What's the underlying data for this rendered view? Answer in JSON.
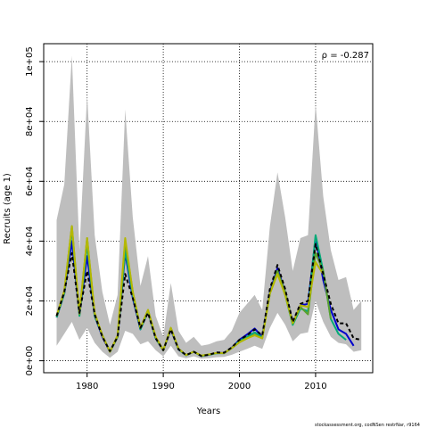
{
  "chart_data": {
    "type": "line",
    "xlabel": "Years",
    "ylabel": "Recruits (age 1)",
    "annotation": "ρ = -0.287",
    "xlim": [
      1974.3,
      2017.5
    ],
    "ylim": [
      -4000,
      106000
    ],
    "x_ticks": [
      1980,
      1990,
      2000,
      2010
    ],
    "x_tick_labels": [
      "1980",
      "1990",
      "2000",
      "2010"
    ],
    "y_ticks": [
      0,
      20000,
      40000,
      60000,
      80000,
      100000
    ],
    "y_tick_labels": [
      "0e+00",
      "2e+04",
      "4e+04",
      "6e+04",
      "8e+04",
      "1e+05"
    ],
    "grid": true,
    "band": {
      "x": [
        1976,
        1977,
        1978,
        1979,
        1980,
        1981,
        1982,
        1983,
        1984,
        1985,
        1986,
        1987,
        1988,
        1989,
        1990,
        1991,
        1992,
        1993,
        1994,
        1995,
        1996,
        1997,
        1998,
        1999,
        2000,
        2001,
        2002,
        2003,
        2004,
        2005,
        2006,
        2007,
        2008,
        2009,
        2010,
        2011,
        2012,
        2013,
        2014,
        2015,
        2016
      ],
      "upper": [
        47000,
        59000,
        102000,
        37000,
        89000,
        42000,
        23000,
        12000,
        22000,
        84000,
        48000,
        25000,
        35000,
        15000,
        8000,
        26000,
        10000,
        6000,
        8000,
        5000,
        5500,
        6500,
        7000,
        10000,
        16000,
        19000,
        22000,
        17000,
        45000,
        63000,
        48000,
        30000,
        41000,
        42000,
        86000,
        55000,
        37000,
        27000,
        28000,
        17000,
        20000
      ],
      "lower": [
        5000,
        9000,
        13000,
        7000,
        11000,
        6000,
        3000,
        1000,
        3000,
        10000,
        9000,
        5500,
        6500,
        3500,
        1500,
        5000,
        1500,
        800,
        1500,
        700,
        900,
        1200,
        1300,
        2000,
        3000,
        4000,
        5000,
        4000,
        11000,
        16000,
        12000,
        6500,
        9000,
        9500,
        20000,
        13000,
        8000,
        6000,
        5500,
        3000,
        3500
      ]
    },
    "series": [
      {
        "color": "#000000",
        "dash": "4,3",
        "x": [
          1976,
          1977,
          1978,
          1979,
          1980,
          1981,
          1982,
          1983,
          1984,
          1985,
          1986,
          1987,
          1988,
          1989,
          1990,
          1991,
          1992,
          1993,
          1994,
          1995,
          1996,
          1997,
          1998,
          1999,
          2000,
          2001,
          2002,
          2003,
          2004,
          2005,
          2006,
          2007,
          2008,
          2009,
          2010,
          2011,
          2012,
          2013,
          2014,
          2015,
          2016
        ],
        "values": [
          15000,
          23000,
          36000,
          16000,
          30000,
          15500,
          8000,
          3200,
          8000,
          29000,
          21000,
          11000,
          16000,
          7500,
          3500,
          10500,
          3800,
          1900,
          3000,
          1600,
          2000,
          2800,
          2700,
          4500,
          7000,
          8500,
          10500,
          8500,
          24000,
          32000,
          24000,
          13000,
          19000,
          20000,
          39000,
          29000,
          19000,
          12500,
          12500,
          7500,
          7000
        ]
      },
      {
        "color": "#0000cd",
        "dash": "",
        "x": [
          1976,
          1977,
          1978,
          1979,
          1980,
          1981,
          1982,
          1983,
          1984,
          1985,
          1986,
          1987,
          1988,
          1989,
          1990,
          1991,
          1992,
          1993,
          1994,
          1995,
          1996,
          1997,
          1998,
          1999,
          2000,
          2001,
          2002,
          2003,
          2004,
          2005,
          2006,
          2007,
          2008,
          2009,
          2010,
          2011,
          2012,
          2013,
          2014,
          2015
        ],
        "values": [
          14500,
          22500,
          40000,
          15500,
          35000,
          15000,
          8000,
          3000,
          8000,
          36000,
          21000,
          10500,
          16500,
          7500,
          3500,
          10500,
          3800,
          1800,
          3000,
          1600,
          2000,
          2600,
          2600,
          4400,
          7000,
          8800,
          10800,
          8000,
          23000,
          31000,
          23000,
          12500,
          18500,
          19000,
          41000,
          27000,
          17000,
          10500,
          9000,
          5000
        ]
      },
      {
        "color": "#00aa77",
        "dash": "",
        "x": [
          1976,
          1977,
          1978,
          1979,
          1980,
          1981,
          1982,
          1983,
          1984,
          1985,
          1986,
          1987,
          1988,
          1989,
          1990,
          1991,
          1992,
          1993,
          1994,
          1995,
          1996,
          1997,
          1998,
          1999,
          2000,
          2001,
          2002,
          2003,
          2004,
          2005,
          2006,
          2007,
          2008,
          2009,
          2010,
          2011,
          2012,
          2013,
          2014
        ],
        "values": [
          14500,
          22500,
          44000,
          15000,
          39000,
          15000,
          8500,
          3000,
          8000,
          37000,
          22000,
          10500,
          16500,
          7500,
          3500,
          10800,
          3800,
          1800,
          3000,
          1600,
          2000,
          2500,
          2600,
          4300,
          6600,
          8000,
          9500,
          7800,
          22500,
          30000,
          22000,
          12000,
          17500,
          16500,
          42000,
          30000,
          14000,
          9000,
          7000
        ]
      },
      {
        "color": "#5aa02c",
        "dash": "",
        "x": [
          1976,
          1977,
          1978,
          1979,
          1980,
          1981,
          1982,
          1983,
          1984,
          1985,
          1986,
          1987,
          1988,
          1989,
          1990,
          1991,
          1992,
          1993,
          1994,
          1995,
          1996,
          1997,
          1998,
          1999,
          2000,
          2001,
          2002,
          2003,
          2004,
          2005,
          2006,
          2007,
          2008,
          2009,
          2010,
          2011,
          2012
        ],
        "values": [
          15000,
          23000,
          45000,
          15500,
          41000,
          15500,
          8500,
          3000,
          8000,
          40000,
          23000,
          11000,
          17000,
          7800,
          3500,
          11000,
          4000,
          1900,
          3000,
          1700,
          2100,
          2600,
          2500,
          4200,
          6200,
          7500,
          8800,
          7500,
          22500,
          30000,
          23000,
          12500,
          18000,
          15500,
          36000,
          30000,
          14000
        ]
      },
      {
        "color": "#b5b800",
        "dash": "",
        "x": [
          1976,
          1977,
          1978,
          1979,
          1980,
          1981,
          1982,
          1983,
          1984,
          1985,
          1986,
          1987,
          1988,
          1989,
          1990,
          1991,
          1992,
          1993,
          1994,
          1995,
          1996,
          1997,
          1998,
          1999,
          2000,
          2001,
          2002,
          2003,
          2004,
          2005,
          2006,
          2007,
          2008,
          2009,
          2010,
          2011
        ],
        "values": [
          15000,
          23500,
          45000,
          16000,
          41000,
          16000,
          8500,
          3000,
          8500,
          41000,
          23000,
          11000,
          17000,
          8000,
          3500,
          11000,
          4000,
          1900,
          3000,
          1700,
          2100,
          2600,
          2600,
          4300,
          6200,
          7500,
          8500,
          7500,
          22500,
          29000,
          22000,
          12500,
          18500,
          18000,
          33000,
          29000
        ]
      }
    ]
  },
  "footer": "stockassessment.org, codNSen restrNar, r9164"
}
